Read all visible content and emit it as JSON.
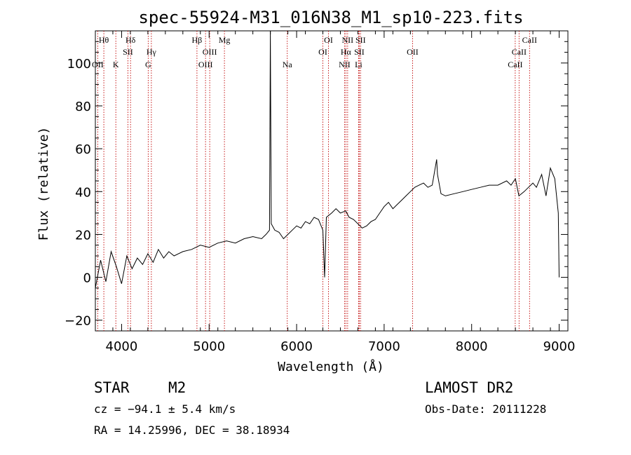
{
  "chart_data": {
    "type": "line",
    "title": "spec-55924-M31_016N38_M1_sp10-223.fits",
    "xlabel": "Wavelength (Å)",
    "ylabel": "Flux (relative)",
    "xlim": [
      3700,
      9100
    ],
    "ylim": [
      -25,
      115
    ],
    "xticks": [
      4000,
      5000,
      6000,
      7000,
      8000,
      9000
    ],
    "yticks": [
      -20,
      0,
      20,
      40,
      60,
      80,
      100
    ],
    "grid": false,
    "line_color": "#000000",
    "marker_line_color": "#c00000",
    "series": [
      {
        "x": [
          3700,
          3760,
          3820,
          3880,
          3940,
          4000,
          4060,
          4120,
          4180,
          4240,
          4300,
          4360,
          4420,
          4480,
          4540,
          4600,
          4700,
          4800,
          4900,
          5000,
          5100,
          5200,
          5300,
          5400,
          5500,
          5600,
          5650,
          5690,
          5700,
          5710,
          5750,
          5800,
          5850,
          5900,
          5950,
          6000,
          6050,
          6100,
          6150,
          6200,
          6250,
          6300,
          6320,
          6340,
          6400,
          6450,
          6500,
          6560,
          6600,
          6650,
          6700,
          6750,
          6800,
          6850,
          6900,
          6950,
          7000,
          7050,
          7100,
          7150,
          7200,
          7250,
          7300,
          7350,
          7400,
          7450,
          7500,
          7550,
          7600,
          7610,
          7650,
          7700,
          7800,
          7900,
          8000,
          8100,
          8200,
          8300,
          8400,
          8450,
          8500,
          8540,
          8600,
          8650,
          8700,
          8740,
          8800,
          8850,
          8900,
          8950,
          8990,
          9000
        ],
        "y": [
          -5,
          8,
          -2,
          12,
          5,
          -3,
          10,
          4,
          9,
          6,
          11,
          7,
          13,
          9,
          12,
          10,
          12,
          13,
          15,
          14,
          16,
          17,
          16,
          18,
          19,
          18,
          20,
          22,
          115,
          25,
          22,
          21,
          18,
          20,
          22,
          24,
          23,
          26,
          25,
          28,
          27,
          22,
          0,
          28,
          30,
          32,
          30,
          31,
          28,
          27,
          25,
          23,
          24,
          26,
          27,
          30,
          33,
          35,
          32,
          34,
          36,
          38,
          40,
          42,
          43,
          44,
          42,
          43,
          55,
          48,
          39,
          38,
          39,
          40,
          41,
          42,
          43,
          43,
          45,
          43,
          46,
          38,
          40,
          42,
          44,
          42,
          48,
          38,
          51,
          46,
          30,
          0
        ]
      }
    ],
    "line_markers": [
      {
        "label": "Hθ",
        "x": 3797,
        "row": 0
      },
      {
        "label": "OII",
        "x": 3727,
        "row": 2
      },
      {
        "label": "K",
        "x": 3934,
        "row": 2
      },
      {
        "label": "Hδ",
        "x": 4102,
        "row": 0
      },
      {
        "label": "SII",
        "x": 4072,
        "row": 1
      },
      {
        "label": "Hγ",
        "x": 4340,
        "row": 1
      },
      {
        "label": "G",
        "x": 4304,
        "row": 2
      },
      {
        "label": "Hβ",
        "x": 4861,
        "row": 0
      },
      {
        "label": "OIII",
        "x": 4959,
        "row": 2
      },
      {
        "label": "OIII",
        "x": 5007,
        "row": 1
      },
      {
        "label": "Mg",
        "x": 5175,
        "row": 0
      },
      {
        "label": "Na",
        "x": 5893,
        "row": 2
      },
      {
        "label": "OI",
        "x": 6300,
        "row": 1
      },
      {
        "label": "OI",
        "x": 6364,
        "row": 0
      },
      {
        "label": "NII",
        "x": 6548,
        "row": 2
      },
      {
        "label": "Hα",
        "x": 6563,
        "row": 1
      },
      {
        "label": "NII",
        "x": 6583,
        "row": 0
      },
      {
        "label": "Li",
        "x": 6708,
        "row": 2
      },
      {
        "label": "SII",
        "x": 6716,
        "row": 1
      },
      {
        "label": "SII",
        "x": 6731,
        "row": 0
      },
      {
        "label": "OII",
        "x": 7325,
        "row": 1
      },
      {
        "label": "CaII",
        "x": 8498,
        "row": 2
      },
      {
        "label": "CaII",
        "x": 8542,
        "row": 1
      },
      {
        "label": "CaII",
        "x": 8662,
        "row": 0
      }
    ]
  },
  "info": {
    "object_class": "STAR",
    "subclass": "M2",
    "survey": "LAMOST DR2",
    "cz": "cz = −94.1 ± 5.4 km/s",
    "obs_date": "Obs-Date: 20111228",
    "radec": "RA =  14.25996, DEC =  38.18934"
  }
}
